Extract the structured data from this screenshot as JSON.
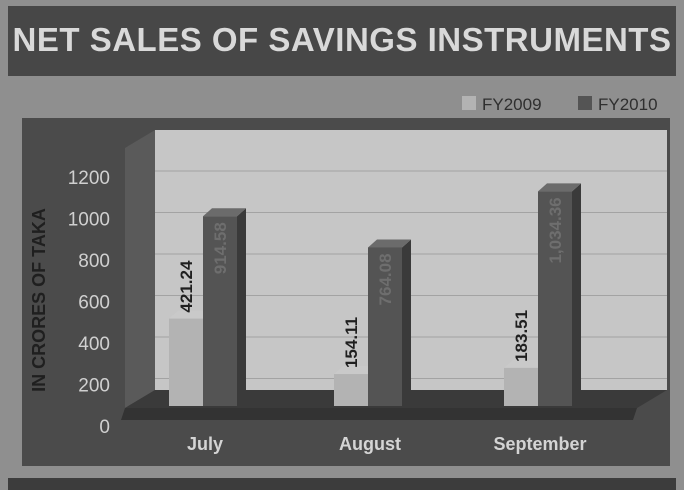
{
  "chart_data": {
    "type": "bar",
    "title": "NET SALES OF SAVINGS INSTRUMENTS",
    "ylabel": "IN CRORES OF TAKA",
    "xlabel": "",
    "categories": [
      "July",
      "August",
      "September"
    ],
    "series": [
      {
        "name": "FY2009",
        "values": [
          421.24,
          154.11,
          183.51
        ],
        "labels": [
          "421.24",
          "154.11",
          "183.51"
        ]
      },
      {
        "name": "FY2010",
        "values": [
          914.58,
          764.08,
          1034.36
        ],
        "labels": [
          "914.58",
          "764.08",
          "1,034.36"
        ]
      }
    ],
    "ylim": [
      0,
      1200
    ],
    "yticks": [
      0,
      200,
      400,
      600,
      800,
      1000,
      1200
    ],
    "grid": true,
    "legend_position": "top-right",
    "three_d": true,
    "colors": {
      "FY2009": "#b3b3b3",
      "FY2010": "#545454",
      "plot_background": "#c6c6c6",
      "frame": "#474747",
      "title_band": "#4a4a4a",
      "page": "#8f8f8f"
    }
  }
}
